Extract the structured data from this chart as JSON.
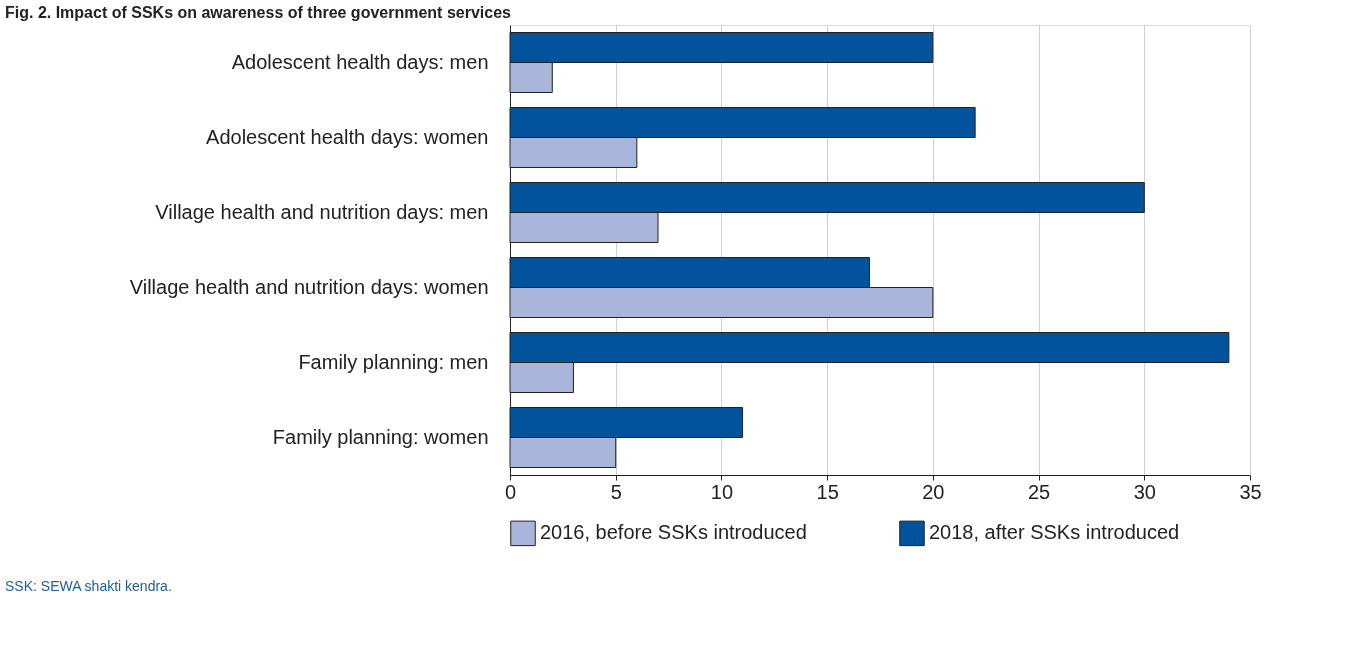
{
  "chart_data": {
    "type": "bar",
    "orientation": "horizontal",
    "title": "Fig. 2. Impact of SSKs on awareness of three government services",
    "categories": [
      "Adolescent health days: men",
      "Adolescent health days: women",
      "Village health and nutrition days: men",
      "Village health and nutrition days: women",
      "Family planning: men",
      "Family planning: women"
    ],
    "series": [
      {
        "name": "2016, before SSKs introduced",
        "color": "#a9b5da",
        "values": [
          2,
          6,
          7,
          20,
          3,
          5
        ]
      },
      {
        "name": "2018, after SSKs introduced",
        "color": "#02529c",
        "values": [
          20,
          22,
          30,
          17,
          34,
          11
        ]
      }
    ],
    "xlim": [
      0,
      35
    ],
    "xticks": [
      0,
      5,
      10,
      15,
      20,
      25,
      30,
      35
    ],
    "grid": "x",
    "legend": "bottom",
    "annotations": [
      "SSK: SEWA shakti kendra."
    ]
  }
}
